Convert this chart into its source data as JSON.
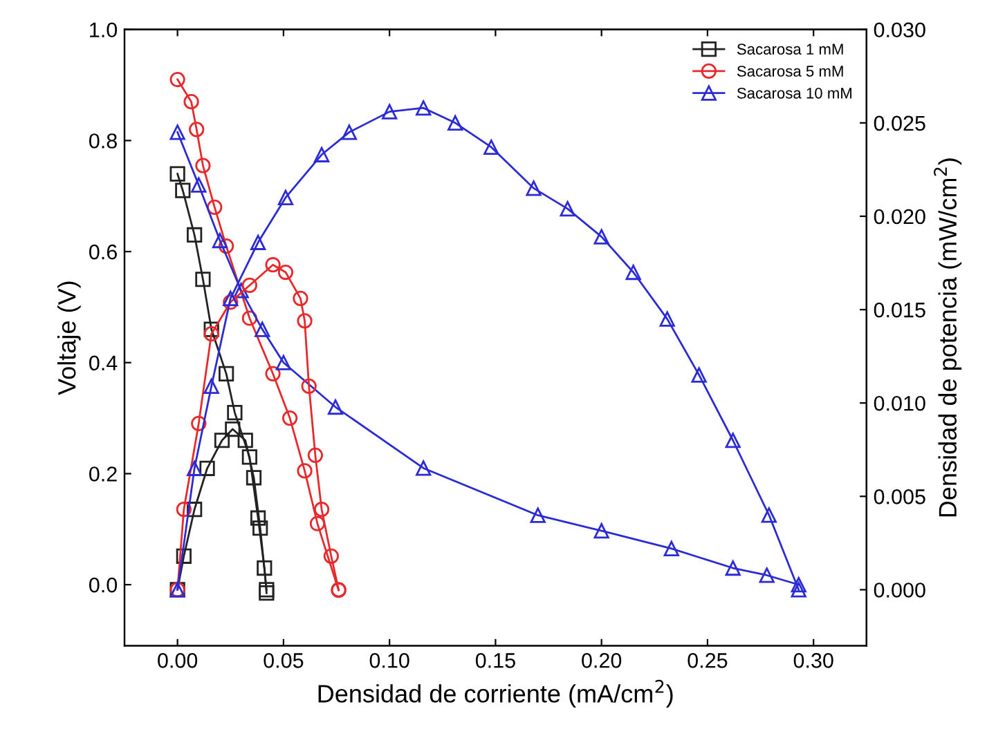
{
  "chart_data": {
    "type": "line",
    "xlabel": "Densidad de corriente (mA/cm$^{2}$)",
    "ylabel": "Voltaje (V)",
    "y2label": "Densidad de potencia (mW/cm$^{2}$)",
    "xlim": [
      -0.025,
      0.325
    ],
    "xticks": [
      {
        "value": 0,
        "label": "0.00"
      },
      0.05,
      {
        "value": 0.1,
        "label": "0.10"
      },
      0.15,
      {
        "value": 0.2,
        "label": "0.20"
      },
      0.25,
      {
        "value": 0.3,
        "label": "0.30"
      }
    ],
    "ylim": [
      -0.11,
      1.0
    ],
    "yticks": [
      {
        "value": 0,
        "label": "0.0"
      },
      0.2,
      0.4,
      0.6,
      0.8,
      {
        "value": 1,
        "label": "1.0"
      }
    ],
    "y2lim": [
      -0.003,
      0.03
    ],
    "y2ticks": [
      {
        "value": 0,
        "label": "0.000"
      },
      0.005,
      {
        "value": 0.01,
        "label": "0.010"
      },
      0.015,
      {
        "value": 0.02,
        "label": "0.020"
      },
      0.025,
      {
        "value": 0.03,
        "label": "0.030"
      }
    ],
    "legend": "top right",
    "grid": false,
    "series": [
      {
        "name": "Sacarosa 1 mM",
        "color": "#222222",
        "marker": "square",
        "x": [
          0,
          0.0025,
          0.008,
          0.012,
          0.016,
          0.023,
          0.027,
          0.034,
          0.038,
          0.041,
          0.042
        ],
        "values": [
          0.74,
          0.71,
          0.63,
          0.55,
          0.46,
          0.38,
          0.31,
          0.23,
          0.12,
          0.03,
          -0.015
        ]
      },
      {
        "name": "Sacarosa 5 mM",
        "color": "#e8282a",
        "marker": "circle",
        "x": [
          0,
          0.0065,
          0.009,
          0.012,
          0.0175,
          0.023,
          0.034,
          0.045,
          0.053,
          0.06,
          0.066,
          0.076
        ],
        "values": [
          0.91,
          0.87,
          0.82,
          0.755,
          0.68,
          0.61,
          0.48,
          0.38,
          0.3,
          0.205,
          0.11,
          -0.01
        ]
      },
      {
        "name": "Sacarosa 10 mM",
        "color": "#2b2bd6",
        "marker": "triangle",
        "x": [
          0,
          0.01,
          0.02,
          0.03,
          0.04,
          0.05,
          0.0745,
          0.116,
          0.17,
          0.2,
          0.233,
          0.262,
          0.278,
          0.293
        ],
        "values": [
          0.815,
          0.72,
          0.62,
          0.53,
          0.46,
          0.4,
          0.32,
          0.21,
          0.125,
          0.097,
          0.065,
          0.03,
          0.017,
          0
        ]
      },
      {
        "axis": "y2",
        "color": "#222222",
        "marker": "square",
        "x": [
          0,
          0.003,
          0.008,
          0.014,
          0.021,
          0.026,
          0.032,
          0.036,
          0.039,
          0.042
        ],
        "values": [
          0,
          0.0018,
          0.0043,
          0.0065,
          0.008,
          0.0086,
          0.008,
          0.006,
          0.0033,
          0
        ]
      },
      {
        "axis": "y2",
        "color": "#e8282a",
        "marker": "circle",
        "x": [
          0,
          0.003,
          0.01,
          0.016,
          0.025,
          0.034,
          0.045,
          0.051,
          0.058,
          0.06,
          0.062,
          0.065,
          0.068,
          0.0725,
          0.076
        ],
        "values": [
          0,
          0.0043,
          0.0089,
          0.0137,
          0.0154,
          0.0163,
          0.0174,
          0.017,
          0.0156,
          0.0144,
          0.0109,
          0.0072,
          0.0043,
          0.0018,
          0
        ]
      },
      {
        "axis": "y2",
        "color": "#2b2bd6",
        "marker": "triangle",
        "x": [
          0,
          0.008,
          0.016,
          0.025,
          0.038,
          0.051,
          0.068,
          0.081,
          0.1,
          0.116,
          0.131,
          0.148,
          0.168,
          0.184,
          0.2,
          0.215,
          0.231,
          0.246,
          0.262,
          0.279,
          0.293
        ],
        "values": [
          0,
          0.0065,
          0.0109,
          0.0156,
          0.0186,
          0.021,
          0.0233,
          0.0245,
          0.0256,
          0.0258,
          0.025,
          0.0237,
          0.0215,
          0.0204,
          0.0189,
          0.017,
          0.0145,
          0.0115,
          0.008,
          0.004,
          0
        ]
      }
    ]
  }
}
